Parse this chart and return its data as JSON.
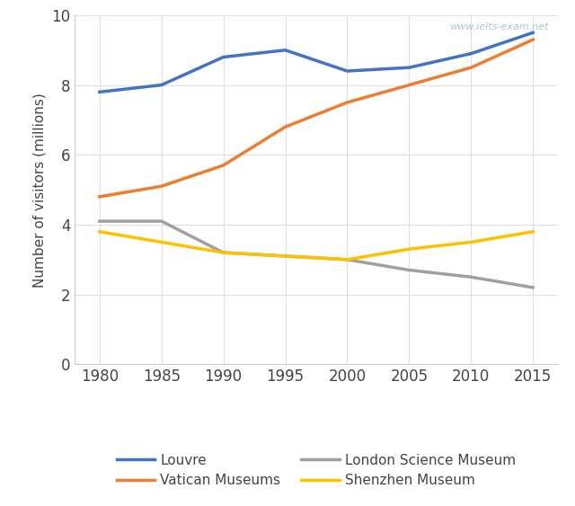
{
  "years": [
    1980,
    1985,
    1990,
    1995,
    2000,
    2005,
    2010,
    2015
  ],
  "louvre": [
    7.8,
    8.0,
    8.8,
    9.0,
    8.4,
    8.5,
    8.9,
    9.5
  ],
  "vatican": [
    4.8,
    5.1,
    5.7,
    6.8,
    7.5,
    8.0,
    8.5,
    9.3
  ],
  "london_science": [
    4.1,
    4.1,
    3.2,
    3.1,
    3.0,
    2.7,
    2.5,
    2.2
  ],
  "shenzhen": [
    3.8,
    3.5,
    3.2,
    3.1,
    3.0,
    3.3,
    3.5,
    3.8
  ],
  "louvre_color": "#4472C4",
  "vatican_color": "#ED7D31",
  "london_science_color": "#A0A0A0",
  "shenzhen_color": "#FFC000",
  "ylabel": "Number of visitors (millions)",
  "ylim": [
    0,
    10
  ],
  "yticks": [
    0,
    2,
    4,
    6,
    8,
    10
  ],
  "xticks": [
    1980,
    1985,
    1990,
    1995,
    2000,
    2005,
    2010,
    2015
  ],
  "watermark": "www.ielts-exam.net",
  "legend_labels": [
    "Louvre",
    "Vatican Museums",
    "London Science Museum",
    "Shenzhen Museum"
  ],
  "linewidth": 2.5,
  "grid_color": "#E0E0E0",
  "tick_label_fontsize": 12,
  "ylabel_fontsize": 11
}
